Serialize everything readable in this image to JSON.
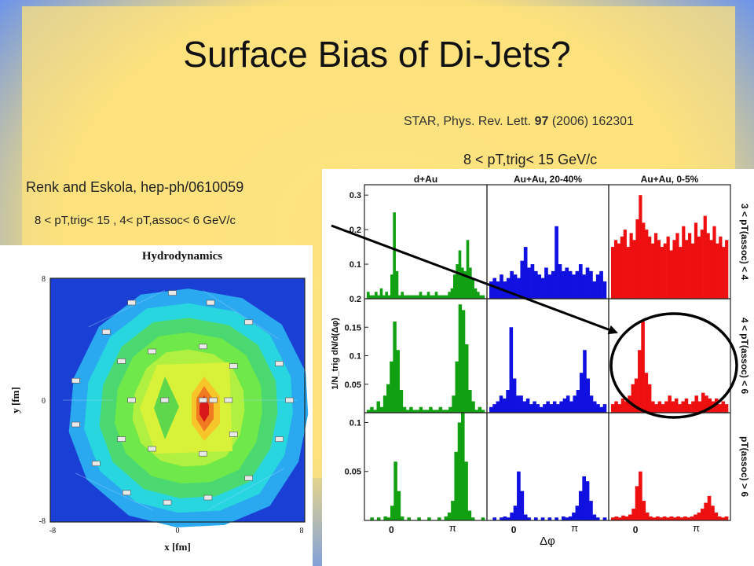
{
  "slide": {
    "title": "Surface Bias of Di-Jets?",
    "star_citation": {
      "prefix": "STAR, Phys. Rev. Lett. ",
      "volume": "97",
      "suffix": " (2006) 162301"
    },
    "trigger_range_top": "8 < pT,trig< 15 GeV/c",
    "renk_citation": "Renk and Eskola, hep-ph/0610059",
    "cuts_left": "8 < pT,trig< 15 ,  4< pT,assoc< 6 GeV/c"
  },
  "colors": {
    "dAu": "#11a011",
    "AuAu_20_40": "#1010e0",
    "AuAu_0_5": "#ee1010",
    "annotation": "#000000"
  },
  "chart_data": [
    {
      "type": "bar",
      "layout": "3x3 grid of histograms",
      "column_titles": [
        "d+Au",
        "Au+Au, 20-40%",
        "Au+Au, 0-5%"
      ],
      "row_labels": [
        "3 < pT(assoc) < 4",
        "4 < pT(assoc) < 6",
        "pT(assoc) > 6"
      ],
      "y_tick_labels": [
        [
          "0.3",
          "0.2",
          "0.1"
        ],
        [
          "0.2",
          "0.15",
          "0.1",
          "0.05"
        ],
        [
          "0.1",
          "0.05"
        ]
      ],
      "x_tick_labels": [
        "0",
        "π"
      ],
      "xlabel": "Δφ",
      "ylabel": "1/N_trig dN/d(Δφ)",
      "ylim": [
        [
          0,
          0.33
        ],
        [
          0,
          0.2
        ],
        [
          0,
          0.11
        ]
      ],
      "annotation": "circle around Au+Au 0-5%, 4 < pT(assoc) < 6 panel",
      "panels": [
        {
          "row": 0,
          "col": 0,
          "color": "dAu",
          "values": [
            0.02,
            0.01,
            0.01,
            0.02,
            0.01,
            0.03,
            0.01,
            0.02,
            0.01,
            0.07,
            0.25,
            0.08,
            0.01,
            0.02,
            0.01,
            0.01,
            0.01,
            0.01,
            0.01,
            0.01,
            0.02,
            0.01,
            0.01,
            0.02,
            0.01,
            0.01,
            0.02,
            0.01,
            0.01,
            0.01,
            0.01,
            0.02,
            0.03,
            0.07,
            0.1,
            0.14,
            0.09,
            0.08,
            0.17,
            0.09,
            0.06,
            0.03,
            0.02,
            0.01,
            0.01
          ]
        },
        {
          "row": 0,
          "col": 1,
          "color": "AuAu_20_40",
          "values": [
            0.05,
            0.06,
            0.05,
            0.07,
            0.05,
            0.06,
            0.08,
            0.07,
            0.06,
            0.11,
            0.15,
            0.09,
            0.1,
            0.08,
            0.07,
            0.06,
            0.09,
            0.07,
            0.08,
            0.21,
            0.1,
            0.08,
            0.09,
            0.08,
            0.07,
            0.08,
            0.1,
            0.07,
            0.09,
            0.08,
            0.05,
            0.07,
            0.08,
            0.05
          ]
        },
        {
          "row": 0,
          "col": 2,
          "color": "AuAu_0_5",
          "values": [
            0.15,
            0.17,
            0.16,
            0.18,
            0.2,
            0.15,
            0.19,
            0.17,
            0.23,
            0.3,
            0.22,
            0.2,
            0.18,
            0.16,
            0.19,
            0.17,
            0.15,
            0.16,
            0.18,
            0.14,
            0.17,
            0.19,
            0.15,
            0.21,
            0.17,
            0.19,
            0.16,
            0.22,
            0.18,
            0.2,
            0.24,
            0.19,
            0.17,
            0.21,
            0.16,
            0.18,
            0.15,
            0.17
          ]
        },
        {
          "row": 1,
          "col": 0,
          "color": "dAu",
          "values": [
            0.005,
            0.01,
            0.005,
            0.02,
            0.01,
            0.03,
            0.05,
            0.09,
            0.16,
            0.11,
            0.04,
            0.01,
            0.005,
            0.01,
            0.005,
            0.005,
            0.01,
            0.005,
            0.005,
            0.01,
            0.005,
            0.005,
            0.01,
            0.005,
            0.005,
            0.01,
            0.03,
            0.09,
            0.19,
            0.18,
            0.12,
            0.04,
            0.02,
            0.005,
            0.01,
            0.005
          ]
        },
        {
          "row": 1,
          "col": 1,
          "color": "AuAu_20_40",
          "values": [
            0.01,
            0.015,
            0.02,
            0.03,
            0.025,
            0.04,
            0.15,
            0.06,
            0.03,
            0.03,
            0.02,
            0.025,
            0.015,
            0.02,
            0.015,
            0.01,
            0.015,
            0.02,
            0.015,
            0.02,
            0.015,
            0.02,
            0.025,
            0.03,
            0.02,
            0.03,
            0.04,
            0.07,
            0.11,
            0.06,
            0.03,
            0.02,
            0.015,
            0.01,
            0.015
          ]
        },
        {
          "row": 1,
          "col": 2,
          "color": "AuAu_0_5",
          "values": [
            0.015,
            0.02,
            0.015,
            0.025,
            0.02,
            0.03,
            0.05,
            0.06,
            0.11,
            0.16,
            0.07,
            0.05,
            0.02,
            0.015,
            0.02,
            0.015,
            0.02,
            0.03,
            0.02,
            0.025,
            0.015,
            0.02,
            0.025,
            0.015,
            0.02,
            0.03,
            0.02,
            0.035,
            0.03,
            0.025,
            0.02,
            0.025,
            0.015,
            0.02,
            0.015
          ]
        },
        {
          "row": 2,
          "col": 0,
          "color": "dAu",
          "values": [
            0.0,
            0.003,
            0.0,
            0.003,
            0.0,
            0.004,
            0.003,
            0.015,
            0.06,
            0.03,
            0.004,
            0.0,
            0.003,
            0.0,
            0.0,
            0.003,
            0.0,
            0.0,
            0.003,
            0.0,
            0.0,
            0.003,
            0.0,
            0.004,
            0.008,
            0.02,
            0.07,
            0.1,
            0.11,
            0.06,
            0.01,
            0.003,
            0.0,
            0.0,
            0.003
          ]
        },
        {
          "row": 2,
          "col": 1,
          "color": "AuAu_20_40",
          "values": [
            0.0,
            0.003,
            0.0,
            0.003,
            0.004,
            0.003,
            0.008,
            0.015,
            0.05,
            0.03,
            0.006,
            0.003,
            0.0,
            0.003,
            0.0,
            0.003,
            0.0,
            0.003,
            0.0,
            0.003,
            0.0,
            0.004,
            0.003,
            0.004,
            0.008,
            0.015,
            0.03,
            0.045,
            0.04,
            0.02,
            0.006,
            0.003,
            0.0,
            0.003
          ]
        },
        {
          "row": 2,
          "col": 2,
          "color": "AuAu_0_5",
          "values": [
            0.003,
            0.004,
            0.003,
            0.005,
            0.004,
            0.006,
            0.012,
            0.035,
            0.05,
            0.02,
            0.008,
            0.004,
            0.003,
            0.004,
            0.003,
            0.004,
            0.003,
            0.004,
            0.003,
            0.004,
            0.003,
            0.004,
            0.003,
            0.004,
            0.006,
            0.008,
            0.012,
            0.018,
            0.025,
            0.015,
            0.008,
            0.004,
            0.003,
            0.004
          ]
        }
      ]
    },
    {
      "type": "heatmap",
      "title": "Hydrodynamics",
      "xlabel": "x [fm]",
      "ylabel": "y [fm]",
      "x_tick_labels": [
        "-8",
        "0",
        "8"
      ],
      "y_tick_labels": [
        "8",
        "0",
        "-8"
      ]
    }
  ]
}
